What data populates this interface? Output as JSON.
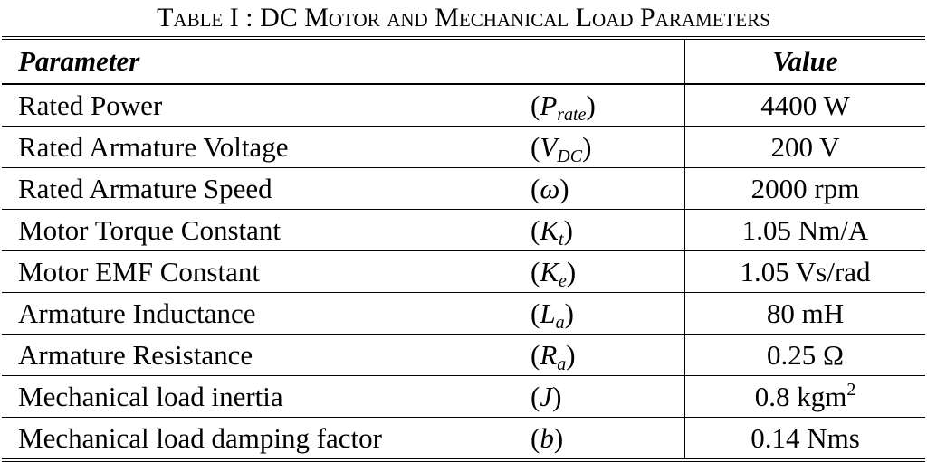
{
  "title": "Table I : DC Motor and Mechanical Load Parameters",
  "table": {
    "header": [
      "Parameter",
      "Value"
    ],
    "rows": [
      {
        "parameter": "Rated Power",
        "symbol": {
          "open": "(",
          "base": "P",
          "sub": "rate",
          "close": ")"
        },
        "value": {
          "text": "4400 W"
        }
      },
      {
        "parameter": "Rated Armature Voltage",
        "symbol": {
          "open": "(",
          "base": "V",
          "sub": "DC",
          "close": ")"
        },
        "value": {
          "text": "200 V"
        }
      },
      {
        "parameter": "Rated Armature Speed",
        "symbol": {
          "open": "(",
          "base": "ω",
          "close": ")"
        },
        "value": {
          "text": "2000 rpm"
        }
      },
      {
        "parameter": "Motor Torque Constant",
        "symbol": {
          "open": "(",
          "base": "K",
          "sub": "t",
          "close": ")"
        },
        "value": {
          "text": "1.05 Nm/A"
        }
      },
      {
        "parameter": "Motor EMF Constant",
        "symbol": {
          "open": "(",
          "base": "K",
          "sub": "e",
          "close": ")"
        },
        "value": {
          "text": "1.05 Vs/rad"
        }
      },
      {
        "parameter": "Armature Inductance",
        "symbol": {
          "open": "(",
          "base": "L",
          "sub": "a",
          "close": ")"
        },
        "value": {
          "text": "80 mH"
        }
      },
      {
        "parameter": "Armature Resistance",
        "symbol": {
          "open": "(",
          "base": "R",
          "sub": "a",
          "close": ")"
        },
        "value": {
          "text": "0.25 Ω"
        }
      },
      {
        "parameter": "Mechanical load inertia",
        "symbol": {
          "open": "(",
          "base": "J",
          "close": ")"
        },
        "value": {
          "text": "0.8 kgm",
          "sup": "2"
        }
      },
      {
        "parameter": "Mechanical load damping factor",
        "symbol": {
          "open": "(",
          "base": "b",
          "close": ")"
        },
        "value": {
          "text": "0.14 Nms"
        }
      }
    ]
  }
}
